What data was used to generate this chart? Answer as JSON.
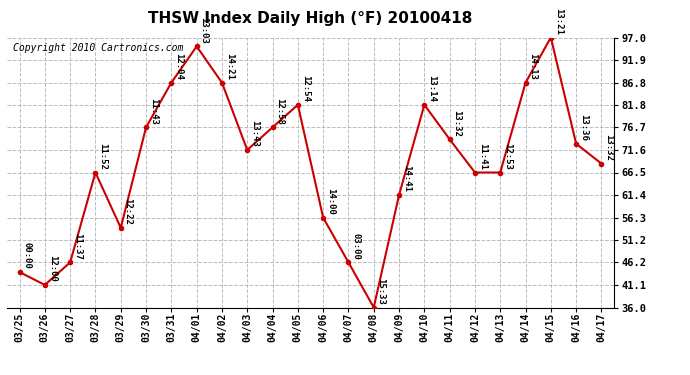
{
  "title": "THSW Index Daily High (°F) 20100418",
  "copyright": "Copyright 2010 Cartronics.com",
  "dates": [
    "03/25",
    "03/26",
    "03/27",
    "03/28",
    "03/29",
    "03/30",
    "03/31",
    "04/01",
    "04/02",
    "04/03",
    "04/04",
    "04/05",
    "04/06",
    "04/07",
    "04/08",
    "04/09",
    "04/10",
    "04/11",
    "04/12",
    "04/13",
    "04/14",
    "04/15",
    "04/16",
    "04/17"
  ],
  "values": [
    44.0,
    41.1,
    46.2,
    66.5,
    54.0,
    76.7,
    86.8,
    95.0,
    86.8,
    71.6,
    76.7,
    81.8,
    56.3,
    46.2,
    36.0,
    61.4,
    81.8,
    74.0,
    66.5,
    66.5,
    86.8,
    97.0,
    73.0,
    68.5
  ],
  "labels": [
    "00:00",
    "12:00",
    "11:37",
    "11:52",
    "12:22",
    "11:43",
    "12:04",
    "13:03",
    "14:21",
    "13:43",
    "12:58",
    "12:54",
    "14:00",
    "03:00",
    "15:33",
    "14:41",
    "13:14",
    "13:32",
    "11:41",
    "12:53",
    "14:13",
    "13:21",
    "13:36",
    "13:32"
  ],
  "yticks": [
    36.0,
    41.1,
    46.2,
    51.2,
    56.3,
    61.4,
    66.5,
    71.6,
    76.7,
    81.8,
    86.8,
    91.9,
    97.0
  ],
  "ylim": [
    36.0,
    97.0
  ],
  "line_color": "#cc0000",
  "marker_color": "#cc0000",
  "background_color": "#ffffff",
  "grid_color": "#bbbbbb",
  "title_fontsize": 11,
  "copyright_fontsize": 7,
  "label_fontsize": 6.5
}
